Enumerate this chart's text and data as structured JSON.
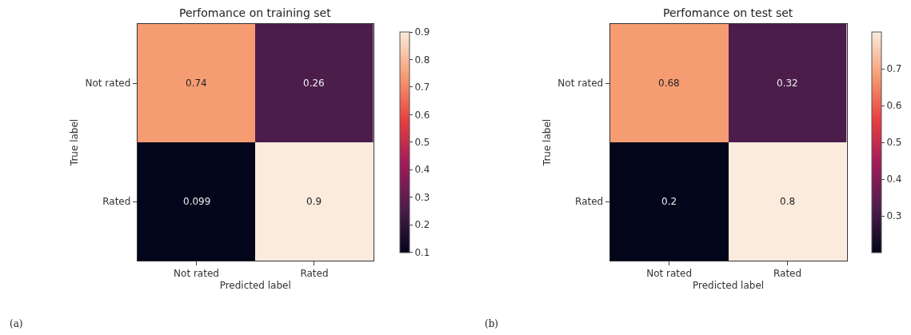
{
  "chart_data": [
    {
      "type": "heatmap",
      "title": "Perfomance on training set",
      "xlabel": "Predicted label",
      "ylabel": "True label",
      "categories": [
        "Not rated",
        "Rated"
      ],
      "y_categories": [
        "Not rated",
        "Rated"
      ],
      "cells": [
        [
          0.74,
          0.26
        ],
        [
          0.099,
          0.9
        ]
      ],
      "clim": [
        0.099,
        0.9
      ],
      "cticks": [
        0.1,
        0.2,
        0.3,
        0.4,
        0.5,
        0.6,
        0.7,
        0.8,
        0.9
      ],
      "data_labels": true,
      "annotations": [
        "(a)"
      ]
    },
    {
      "type": "heatmap",
      "title": "Perfomance on test set",
      "xlabel": "Predicted label",
      "ylabel": "True label",
      "categories": [
        "Not rated",
        "Rated"
      ],
      "y_categories": [
        "Not rated",
        "Rated"
      ],
      "cells": [
        [
          0.68,
          0.32
        ],
        [
          0.2,
          0.8
        ]
      ],
      "clim": [
        0.2,
        0.8
      ],
      "cticks": [
        0.3,
        0.4,
        0.5,
        0.6,
        0.7
      ],
      "data_labels": true,
      "annotations": [
        "(b)"
      ]
    }
  ]
}
